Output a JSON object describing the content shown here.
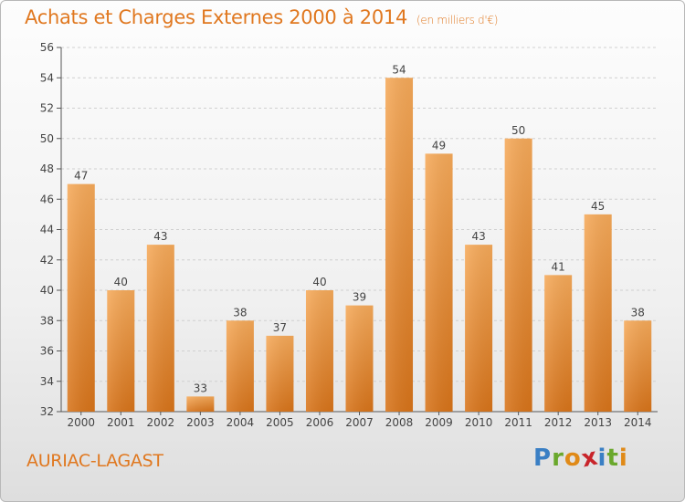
{
  "chart_data": {
    "type": "bar",
    "title": "Achats et Charges Externes 2000 à 2014",
    "subtitle": "(en milliers d'€)",
    "categories": [
      "2000",
      "2001",
      "2002",
      "2003",
      "2004",
      "2005",
      "2006",
      "2007",
      "2008",
      "2009",
      "2010",
      "2011",
      "2012",
      "2013",
      "2014"
    ],
    "values": [
      47,
      40,
      43,
      33,
      38,
      37,
      40,
      39,
      54,
      49,
      43,
      50,
      41,
      45,
      38
    ],
    "ylim": [
      32,
      56
    ],
    "yticks": [
      32,
      34,
      36,
      38,
      40,
      42,
      44,
      46,
      48,
      50,
      52,
      54,
      56
    ],
    "xlabel": "",
    "ylabel": "",
    "grid": true,
    "bar_color": "#f0a050"
  },
  "footer": {
    "commune": "AURIAC-LAGAST"
  },
  "logo": {
    "letters": [
      "P",
      "r",
      "o",
      "x",
      "i",
      "t",
      "i"
    ],
    "colors": [
      "#3a7fc4",
      "#6aa82c",
      "#e08a18",
      "#c8242a",
      "#3a7fc4",
      "#6aa82c",
      "#e08a18"
    ]
  }
}
